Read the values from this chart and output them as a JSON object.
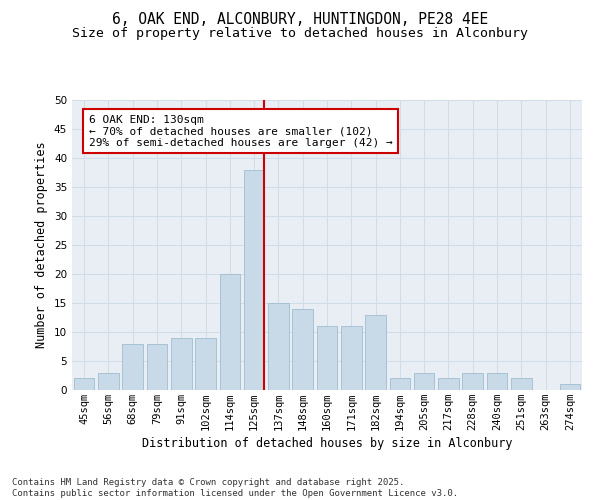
{
  "title": "6, OAK END, ALCONBURY, HUNTINGDON, PE28 4EE",
  "subtitle": "Size of property relative to detached houses in Alconbury",
  "xlabel": "Distribution of detached houses by size in Alconbury",
  "ylabel": "Number of detached properties",
  "categories": [
    "45sqm",
    "56sqm",
    "68sqm",
    "79sqm",
    "91sqm",
    "102sqm",
    "114sqm",
    "125sqm",
    "137sqm",
    "148sqm",
    "160sqm",
    "171sqm",
    "182sqm",
    "194sqm",
    "205sqm",
    "217sqm",
    "228sqm",
    "240sqm",
    "251sqm",
    "263sqm",
    "274sqm"
  ],
  "values": [
    2,
    3,
    8,
    8,
    9,
    9,
    20,
    38,
    15,
    14,
    11,
    11,
    13,
    2,
    3,
    2,
    3,
    3,
    2,
    0,
    1
  ],
  "bar_color": "#c8d9e8",
  "bar_edge_color": "#a0bdd0",
  "vline_color": "#cc0000",
  "annotation_text": "6 OAK END: 130sqm\n← 70% of detached houses are smaller (102)\n29% of semi-detached houses are larger (42) →",
  "annotation_box_color": "#cc0000",
  "ylim": [
    0,
    50
  ],
  "yticks": [
    0,
    5,
    10,
    15,
    20,
    25,
    30,
    35,
    40,
    45,
    50
  ],
  "grid_color": "#d0dce6",
  "bg_color": "#e8eef4",
  "fig_bg_color": "#ffffff",
  "footer": "Contains HM Land Registry data © Crown copyright and database right 2025.\nContains public sector information licensed under the Open Government Licence v3.0.",
  "title_fontsize": 10.5,
  "subtitle_fontsize": 9.5,
  "axis_label_fontsize": 8.5,
  "tick_fontsize": 7.5,
  "annotation_fontsize": 8,
  "footer_fontsize": 6.5,
  "vline_pos": 7.42
}
